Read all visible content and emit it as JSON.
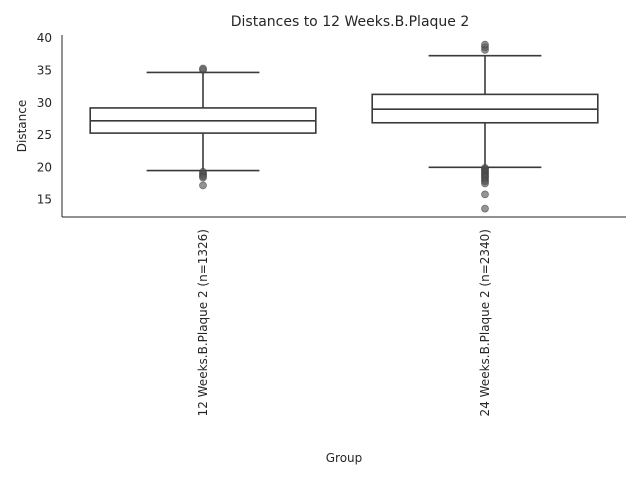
{
  "chart_data": {
    "type": "box",
    "title": "Distances to 12 Weeks.B.Plaque 2",
    "xlabel": "Group",
    "ylabel": "Distance",
    "ylim": [
      12.3,
      40.5
    ],
    "yticks": [
      15,
      20,
      25,
      30,
      35,
      40
    ],
    "grid": false,
    "categories": [
      "12 Weeks.B.Plaque 2 (n=1326)",
      "24 Weeks.B.Plaque 2 (n=2340)"
    ],
    "boxes": [
      {
        "whisker_low": 19.5,
        "q1": 25.3,
        "median": 27.2,
        "q3": 29.2,
        "whisker_high": 34.7,
        "fliers": [
          35.1,
          35.3,
          19.3,
          19.0,
          18.8,
          18.6,
          18.4,
          17.2
        ]
      },
      {
        "whisker_low": 20.0,
        "q1": 26.9,
        "median": 29.0,
        "q3": 31.3,
        "whisker_high": 37.3,
        "fliers": [
          38.2,
          38.6,
          39.0,
          19.9,
          19.7,
          19.5,
          19.3,
          19.1,
          18.9,
          18.7,
          18.5,
          18.3,
          18.0,
          17.8,
          17.5,
          15.8,
          13.6
        ]
      }
    ]
  }
}
